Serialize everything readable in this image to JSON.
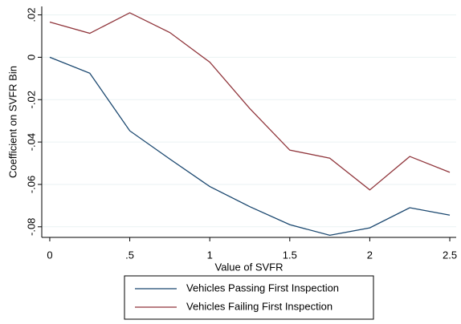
{
  "chart_data": {
    "type": "line",
    "x": [
      0,
      0.25,
      0.5,
      0.75,
      1,
      1.25,
      1.5,
      1.75,
      2,
      2.25,
      2.5
    ],
    "series": [
      {
        "name": "Vehicles Passing First Inspection",
        "color": "#1a476f",
        "values": [
          0,
          -0.0075,
          -0.0347,
          -0.048,
          -0.061,
          -0.0705,
          -0.079,
          -0.084,
          -0.0805,
          -0.071,
          -0.0745
        ]
      },
      {
        "name": "Vehicles Failing First Inspection",
        "color": "#90353b",
        "values": [
          0.0166,
          0.0113,
          0.021,
          0.0117,
          -0.0023,
          -0.0242,
          -0.0438,
          -0.0476,
          -0.0626,
          -0.0468,
          -0.0543
        ]
      }
    ],
    "xlabel": "Value of SVFR",
    "ylabel": "Coefficient on SVFR Bin",
    "xlim": [
      -0.05,
      2.54
    ],
    "ylim": [
      -0.085,
      0.024
    ],
    "xticks": [
      0,
      {
        "value": 0.5,
        "label": ".5"
      },
      1,
      1.5,
      2,
      2.5
    ],
    "yticks": [
      {
        "value": 0.02,
        "label": ".02"
      },
      0,
      {
        "value": -0.02,
        "label": "-.02"
      },
      {
        "value": -0.04,
        "label": "-.04"
      },
      {
        "value": -0.06,
        "label": "-.06"
      },
      {
        "value": -0.08,
        "label": "-.08"
      }
    ],
    "grid": true,
    "legend": "bottom"
  }
}
